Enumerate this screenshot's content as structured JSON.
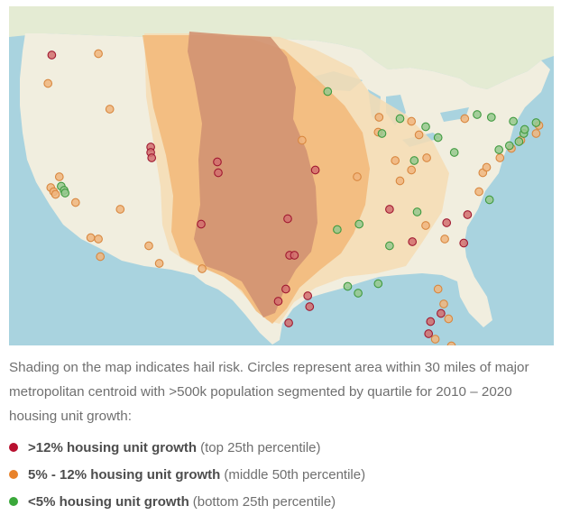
{
  "caption": "Shading on the map indicates hail risk. Circles represent area within 30 miles of major metropolitan centroid with >500k population segmented by quartile for 2010 – 2020 housing unit growth:",
  "legend": [
    {
      "key": "high",
      "label": ">12% housing unit growth",
      "detail": "(top 25th percentile)",
      "color": "#b8102f"
    },
    {
      "key": "mid",
      "label": "5% - 12% housing unit growth",
      "detail": "(middle 50th percentile)",
      "color": "#e8822a"
    },
    {
      "key": "low",
      "label": "<5% housing unit growth",
      "detail": "(bottom 25th percentile)",
      "color": "#3aa83a"
    }
  ],
  "colors": {
    "ocean": "#a9d3df",
    "land": "#f1eedf",
    "canada": "#e4ebd3",
    "hail_low": "#f6dcb4",
    "hail_mid": "#f2b878",
    "hail_high": "#d29272",
    "high_fill": "#d26f6f",
    "high_stroke": "#a01830",
    "mid_fill": "#f0b57e",
    "mid_stroke": "#d8873f",
    "low_fill": "#96c88e",
    "low_stroke": "#3f9a3f"
  },
  "metros": {
    "high": [
      [
        -122.3,
        47.6
      ],
      [
        -111.9,
        40.8
      ],
      [
        -111.9,
        40.4
      ],
      [
        -111.8,
        40.0
      ],
      [
        -104.9,
        39.7
      ],
      [
        -104.8,
        38.9
      ],
      [
        -98.5,
        29.4
      ],
      [
        -97.7,
        30.3
      ],
      [
        -97.3,
        32.8
      ],
      [
        -96.8,
        32.8
      ],
      [
        -95.4,
        29.8
      ],
      [
        -97.5,
        35.5
      ],
      [
        -94.6,
        39.1
      ],
      [
        -95.2,
        29.0
      ],
      [
        -97.4,
        27.8
      ],
      [
        -106.6,
        35.1
      ],
      [
        -86.8,
        36.2
      ],
      [
        -84.4,
        33.8
      ],
      [
        -80.8,
        35.2
      ],
      [
        -78.6,
        35.8
      ],
      [
        -81.4,
        28.5
      ],
      [
        -82.5,
        27.9
      ],
      [
        -82.7,
        27.0
      ],
      [
        -79.0,
        33.7
      ]
    ],
    "mid": [
      [
        -122.7,
        45.5
      ],
      [
        -122.4,
        37.8
      ],
      [
        -122.1,
        37.5
      ],
      [
        -121.5,
        38.6
      ],
      [
        -121.9,
        37.3
      ],
      [
        -119.8,
        36.7
      ],
      [
        -118.2,
        34.1
      ],
      [
        -117.4,
        34.0
      ],
      [
        -117.2,
        32.7
      ],
      [
        -115.1,
        36.2
      ],
      [
        -112.1,
        33.5
      ],
      [
        -111.0,
        32.2
      ],
      [
        -106.5,
        31.8
      ],
      [
        -117.4,
        47.7
      ],
      [
        -116.2,
        43.6
      ],
      [
        -96.0,
        41.3
      ],
      [
        -90.2,
        38.6
      ],
      [
        -86.2,
        39.8
      ],
      [
        -82.9,
        40.0
      ],
      [
        -83.7,
        41.7
      ],
      [
        -85.7,
        38.3
      ],
      [
        -84.5,
        39.1
      ],
      [
        -83.0,
        35.0
      ],
      [
        -81.7,
        30.3
      ],
      [
        -81.0,
        34.0
      ],
      [
        -80.3,
        26.1
      ],
      [
        -80.2,
        25.8
      ],
      [
        -77.4,
        37.5
      ],
      [
        -77.0,
        38.9
      ],
      [
        -76.6,
        39.3
      ],
      [
        -75.2,
        40.0
      ],
      [
        -74.0,
        40.7
      ],
      [
        -73.0,
        41.3
      ],
      [
        -71.1,
        42.4
      ],
      [
        -71.4,
        41.8
      ],
      [
        -84.5,
        42.7
      ],
      [
        -78.9,
        42.9
      ],
      [
        -82.0,
        26.6
      ],
      [
        -81.1,
        29.2
      ],
      [
        -80.6,
        28.1
      ],
      [
        -87.9,
        43.0
      ],
      [
        -88.0,
        41.9
      ]
    ],
    "low": [
      [
        -121.3,
        37.9
      ],
      [
        -121.0,
        37.6
      ],
      [
        -120.9,
        37.4
      ],
      [
        -92.3,
        34.7
      ],
      [
        -90.0,
        35.1
      ],
      [
        -90.1,
        30.0
      ],
      [
        -88.0,
        30.7
      ],
      [
        -86.8,
        33.5
      ],
      [
        -87.6,
        41.8
      ],
      [
        -83.0,
        42.3
      ],
      [
        -81.7,
        41.5
      ],
      [
        -80.0,
        40.4
      ],
      [
        -84.2,
        39.8
      ],
      [
        -85.7,
        42.9
      ],
      [
        -76.1,
        43.0
      ],
      [
        -77.6,
        43.2
      ],
      [
        -73.8,
        42.7
      ],
      [
        -72.7,
        41.8
      ],
      [
        -73.2,
        41.2
      ],
      [
        -72.6,
        42.1
      ],
      [
        -71.4,
        42.6
      ],
      [
        -75.3,
        40.6
      ],
      [
        -74.2,
        40.9
      ],
      [
        -83.9,
        36.0
      ],
      [
        -91.2,
        30.5
      ],
      [
        -76.3,
        36.9
      ],
      [
        -93.3,
        44.9
      ]
    ]
  }
}
